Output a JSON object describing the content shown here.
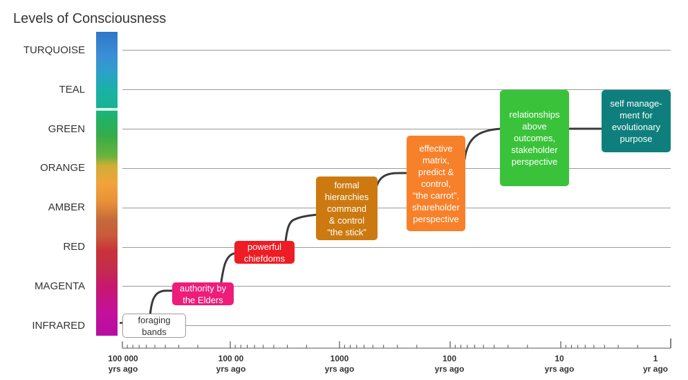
{
  "title": "Levels of Consciousness",
  "levels": [
    {
      "name": "TURQUOISE"
    },
    {
      "name": "TEAL"
    },
    {
      "name": "GREEN"
    },
    {
      "name": "ORANGE"
    },
    {
      "name": "AMBER"
    },
    {
      "name": "RED"
    },
    {
      "name": "MAGENTA"
    },
    {
      "name": "INFRARED"
    }
  ],
  "stages": [
    {
      "text": "foraging\nbands",
      "color": "#ffffff",
      "text_color": "#333333",
      "border": "#9a9a9a"
    },
    {
      "text": "authority by\nthe Elders",
      "color": "#ee1c7a"
    },
    {
      "text": "powerful\nchiefdoms",
      "color": "#ee1c24"
    },
    {
      "text": "formal\nhierarchies\ncommand\n& control\n“the stick”",
      "color": "#cc7a10"
    },
    {
      "text": "effective\nmatrix,\npredict &\ncontrol,\n“the carrot”,\nshareholder\nperspective",
      "color": "#f7812a"
    },
    {
      "text": "relationships\nabove\noutcomes,\nstakeholder\nperspective",
      "color": "#3ac33a"
    },
    {
      "text": "self manage-\nment for\nevolutionary\npurpose",
      "color": "#0e7f7c"
    }
  ],
  "x_axis": {
    "labels": [
      {
        "value": "100 000",
        "unit": "yrs ago"
      },
      {
        "value": "100 00",
        "unit": "yrs ago"
      },
      {
        "value": "1000",
        "unit": "yrs ago"
      },
      {
        "value": "100",
        "unit": "yrs ago"
      },
      {
        "value": "10",
        "unit": "yrs ago"
      },
      {
        "value": "1",
        "unit": "yr ago"
      }
    ]
  },
  "colors": {
    "curve": "#3a3a3a",
    "grid": "#9a9a9a"
  }
}
